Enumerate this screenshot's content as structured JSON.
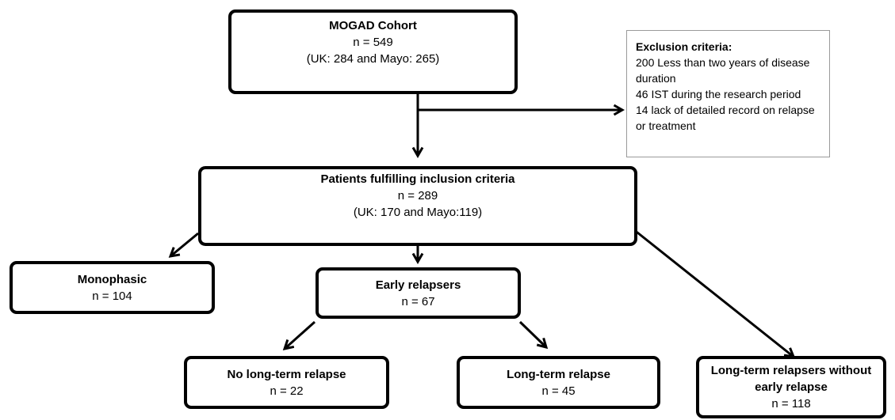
{
  "nodes": [
    {
      "title": "MOGAD Cohort",
      "lines": [
        "n = 549",
        "(UK: 284 and Mayo: 265)"
      ]
    },
    {
      "title": "Patients fulfilling inclusion criteria",
      "lines": [
        "n = 289",
        "(UK: 170 and Mayo:119)"
      ]
    },
    {
      "title": "Monophasic",
      "lines": [
        "n = 104"
      ]
    },
    {
      "title": "Early relapsers",
      "lines": [
        "n = 67"
      ]
    },
    {
      "title": "No long-term relapse",
      "lines": [
        "n = 22"
      ]
    },
    {
      "title": "Long-term relapse",
      "lines": [
        "n = 45"
      ]
    },
    {
      "title": "Long-term relapsers without early relapse",
      "lines": [
        "n = 118"
      ]
    }
  ],
  "exclusion": {
    "title": "Exclusion criteria:",
    "items": [
      "200 Less than two years of disease duration",
      "46 IST during the research period",
      "14 lack of detailed record on relapse or treatment"
    ]
  }
}
